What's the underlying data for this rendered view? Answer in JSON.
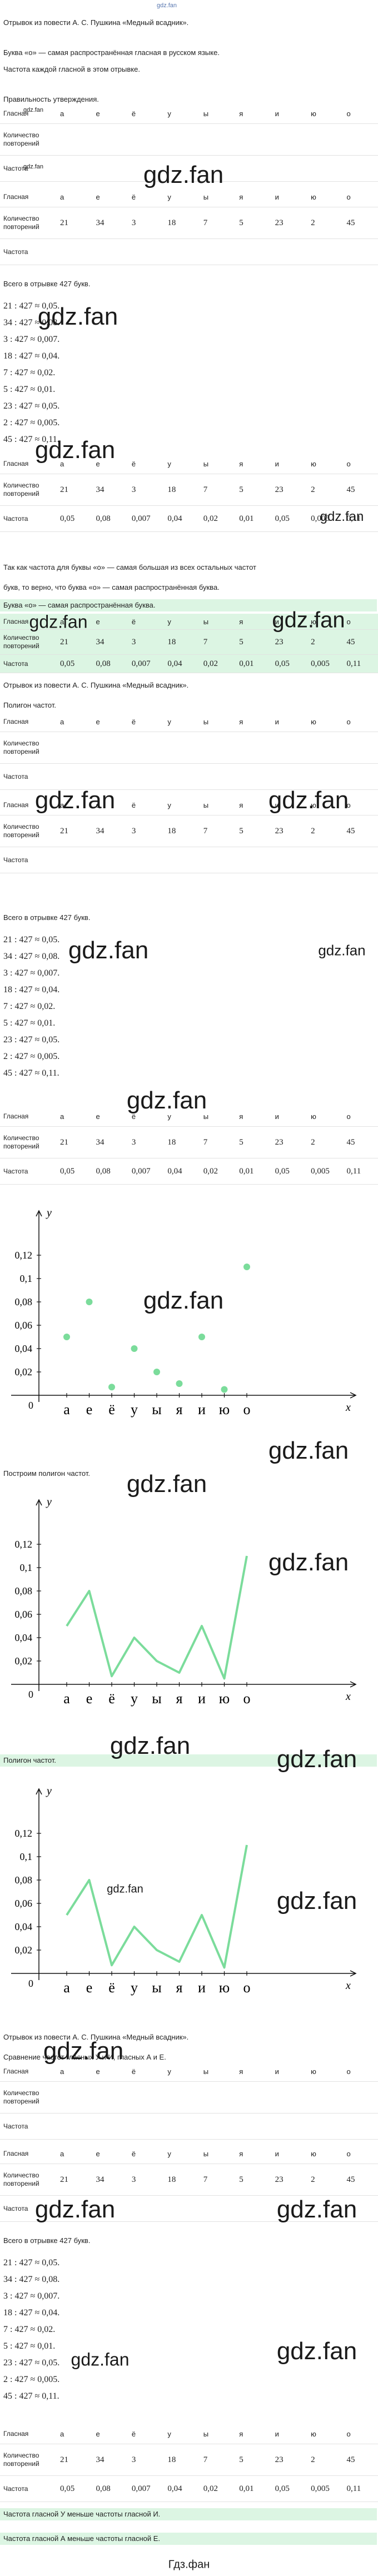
{
  "watermark_top": "gdz.fan",
  "intro": "Отрывок из повести А. С. Пушкина «Медный всадник».",
  "claim": "Буква «о» — самая распространённая гласная в русском языке.",
  "task": "Частота каждой гласной в этом отрывке.",
  "check": "Правильность утверждения.",
  "table_labels": {
    "vowel": "Гласная",
    "count": "Количество повторений",
    "freq": "Частота"
  },
  "vowels": [
    "а",
    "е",
    "ё",
    "у",
    "ы",
    "я",
    "и",
    "ю",
    "о"
  ],
  "counts": [
    21,
    34,
    3,
    18,
    7,
    5,
    23,
    2,
    45
  ],
  "freqs": [
    "0,05",
    "0,08",
    "0,007",
    "0,04",
    "0,02",
    "0,01",
    "0,05",
    "0,005",
    "0,11"
  ],
  "total": "Всего в отрывке 427 букв.",
  "calcs": [
    "21 : 427 ≈ 0,05.",
    "34 : 427 ≈ 0,08.",
    "3 : 427 ≈ 0,007.",
    "18 : 427 ≈ 0,04.",
    "7 : 427 ≈ 0,02.",
    "5 : 427 ≈ 0,01.",
    "23 : 427 ≈ 0,05.",
    "2 : 427 ≈ 0,005.",
    "45 : 427 ≈ 0,11."
  ],
  "conclusion": [
    "Так как частота для буквы «о» — самая большая из всех остальных частот",
    "букв, то верно, что буква «о» — самая распространённая буква."
  ],
  "answer1": "Буква «о» — самая распространённая буква.",
  "polygon_task": "Полигон частот.",
  "polygon_step": "Построим полигон частот.",
  "answer2": "Полигон частот.",
  "compare_task": "Сравнение частот гласных У и И, гласных А и Е.",
  "answer3": [
    "Частота гласной У меньше частоты гласной И.",
    "Частота гласной А меньше частоты гласной Е."
  ],
  "plot": {
    "values": [
      0.05,
      0.08,
      0.007,
      0.04,
      0.02,
      0.01,
      0.05,
      0.005,
      0.11
    ],
    "yticks": [
      0,
      {
        "value": 0.02,
        "label": "0,02"
      },
      {
        "value": 0.04,
        "label": "0,04"
      },
      {
        "value": 0.06,
        "label": "0,06"
      },
      {
        "value": 0.08,
        "label": "0,08"
      },
      {
        "value": 0.1,
        "label": "0,1"
      },
      {
        "value": 0.12,
        "label": "0,12"
      }
    ],
    "xlabel": "x",
    "ylabel": "y"
  },
  "watermarks": [
    "gdz.fan",
    "gdz.fan",
    "gdz.fan",
    "gdz.fan",
    "gdz.fan",
    "gdz.fan",
    "gdz.fan",
    "gdz.fan",
    "gdz.fan",
    "gdz.fan",
    "gdz.fan",
    "gdz.fan",
    "gdz.fan",
    "gdz.fan",
    "gdz.fan",
    "gdz.fan",
    "gdz.fan",
    "gdz.fan",
    "gdz.fan",
    "gdz.fan",
    "gdz.fan",
    "gdz.fan",
    "gdz.fan",
    "gdz.fan",
    "gdz.fan",
    "gdz.fan"
  ],
  "footer": "Гдз.фан"
}
